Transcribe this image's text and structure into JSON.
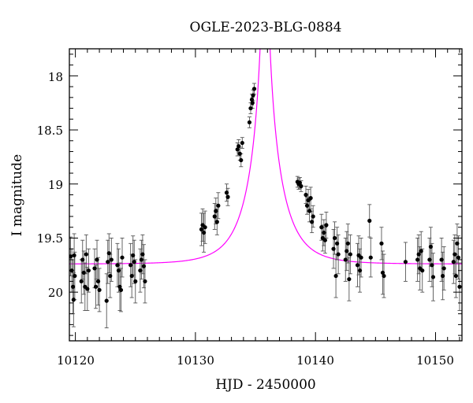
{
  "chart_data": {
    "type": "scatter",
    "title": "OGLE-2023-BLG-0884",
    "xlabel": "HJD - 2450000",
    "ylabel": "I magnitude",
    "xlim": [
      10119.5,
      10152.2
    ],
    "ylim": [
      20.45,
      17.75
    ],
    "y_inverted": true,
    "x_ticks": [
      10120,
      10130,
      10140,
      10150
    ],
    "x_tick_labels": [
      "10120",
      "10130",
      "10140",
      "10150"
    ],
    "y_ticks": [
      18,
      18.5,
      19,
      19.5,
      20
    ],
    "y_tick_labels": [
      "18",
      "18.5",
      "19",
      "19.5",
      "20"
    ],
    "grid": false,
    "legend": "none",
    "colors": {
      "model": "#ff00ff",
      "data": "#000000"
    },
    "series": [
      {
        "kind": "points-with-errorbars",
        "points": [
          [
            10119.6,
            19.67,
            0.18
          ],
          [
            10119.7,
            19.8,
            0.2
          ],
          [
            10119.8,
            19.95,
            0.25
          ],
          [
            10119.85,
            20.07,
            0.25
          ],
          [
            10119.9,
            19.66,
            0.2
          ],
          [
            10119.95,
            19.85,
            0.22
          ],
          [
            10120.5,
            19.9,
            0.2
          ],
          [
            10120.6,
            19.7,
            0.18
          ],
          [
            10120.7,
            19.82,
            0.2
          ],
          [
            10120.8,
            19.95,
            0.22
          ],
          [
            10120.9,
            19.65,
            0.18
          ],
          [
            10121.0,
            19.97,
            0.2
          ],
          [
            10121.1,
            19.8,
            0.2
          ],
          [
            10121.6,
            19.78,
            0.18
          ],
          [
            10121.7,
            19.95,
            0.2
          ],
          [
            10121.8,
            19.7,
            0.18
          ],
          [
            10121.9,
            19.9,
            0.22
          ],
          [
            10122.0,
            19.98,
            0.2
          ],
          [
            10122.6,
            20.08,
            0.25
          ],
          [
            10122.7,
            19.72,
            0.2
          ],
          [
            10122.8,
            19.64,
            0.18
          ],
          [
            10122.9,
            19.85,
            0.2
          ],
          [
            10123.0,
            19.7,
            0.2
          ],
          [
            10123.5,
            19.75,
            0.2
          ],
          [
            10123.6,
            19.8,
            0.2
          ],
          [
            10123.7,
            19.95,
            0.22
          ],
          [
            10123.8,
            19.98,
            0.2
          ],
          [
            10123.9,
            19.68,
            0.18
          ],
          [
            10124.6,
            19.75,
            0.2
          ],
          [
            10124.7,
            19.85,
            0.2
          ],
          [
            10124.8,
            19.66,
            0.18
          ],
          [
            10124.9,
            19.72,
            0.2
          ],
          [
            10125.0,
            19.9,
            0.2
          ],
          [
            10125.4,
            19.8,
            0.2
          ],
          [
            10125.5,
            19.7,
            0.18
          ],
          [
            10125.6,
            19.65,
            0.18
          ],
          [
            10125.7,
            19.76,
            0.2
          ],
          [
            10125.8,
            19.9,
            0.2
          ],
          [
            10130.5,
            19.42,
            0.15
          ],
          [
            10130.6,
            19.38,
            0.15
          ],
          [
            10130.7,
            19.45,
            0.18
          ],
          [
            10130.8,
            19.4,
            0.15
          ],
          [
            10131.6,
            19.3,
            0.12
          ],
          [
            10131.7,
            19.25,
            0.12
          ],
          [
            10131.8,
            19.35,
            0.12
          ],
          [
            10131.9,
            19.2,
            0.12
          ],
          [
            10132.6,
            19.08,
            0.08
          ],
          [
            10132.7,
            19.12,
            0.08
          ],
          [
            10133.5,
            18.68,
            0.06
          ],
          [
            10133.6,
            18.65,
            0.06
          ],
          [
            10133.7,
            18.72,
            0.06
          ],
          [
            10133.8,
            18.78,
            0.06
          ],
          [
            10133.9,
            18.62,
            0.05
          ],
          [
            10134.5,
            18.43,
            0.05
          ],
          [
            10134.6,
            18.3,
            0.05
          ],
          [
            10134.7,
            18.22,
            0.05
          ],
          [
            10134.8,
            18.18,
            0.05
          ],
          [
            10134.9,
            18.12,
            0.05
          ],
          [
            10134.75,
            18.25,
            0.05
          ],
          [
            10138.5,
            18.98,
            0.05
          ],
          [
            10138.6,
            19.0,
            0.05
          ],
          [
            10138.7,
            18.99,
            0.05
          ],
          [
            10138.8,
            19.02,
            0.05
          ],
          [
            10139.2,
            19.1,
            0.08
          ],
          [
            10139.3,
            19.2,
            0.08
          ],
          [
            10139.4,
            19.15,
            0.1
          ],
          [
            10139.5,
            19.25,
            0.1
          ],
          [
            10139.6,
            19.13,
            0.1
          ],
          [
            10139.7,
            19.35,
            0.1
          ],
          [
            10139.8,
            19.3,
            0.1
          ],
          [
            10140.5,
            19.4,
            0.12
          ],
          [
            10140.6,
            19.5,
            0.12
          ],
          [
            10140.7,
            19.45,
            0.12
          ],
          [
            10140.8,
            19.52,
            0.12
          ],
          [
            10140.9,
            19.38,
            0.12
          ],
          [
            10141.5,
            19.6,
            0.18
          ],
          [
            10141.6,
            19.5,
            0.15
          ],
          [
            10141.7,
            19.85,
            0.2
          ],
          [
            10141.8,
            19.55,
            0.15
          ],
          [
            10141.9,
            19.65,
            0.18
          ],
          [
            10142.5,
            19.7,
            0.2
          ],
          [
            10142.6,
            19.62,
            0.18
          ],
          [
            10142.7,
            19.55,
            0.18
          ],
          [
            10142.8,
            19.88,
            0.2
          ],
          [
            10142.9,
            19.65,
            0.18
          ],
          [
            10143.5,
            19.75,
            0.2
          ],
          [
            10143.6,
            19.66,
            0.18
          ],
          [
            10143.7,
            19.8,
            0.2
          ],
          [
            10143.8,
            19.68,
            0.18
          ],
          [
            10144.5,
            19.34,
            0.15
          ],
          [
            10144.6,
            19.68,
            0.18
          ],
          [
            10145.5,
            19.55,
            0.15
          ],
          [
            10145.6,
            19.82,
            0.2
          ],
          [
            10145.7,
            19.85,
            0.2
          ],
          [
            10147.5,
            19.72,
            0.18
          ],
          [
            10148.5,
            19.7,
            0.2
          ],
          [
            10148.6,
            19.65,
            0.18
          ],
          [
            10148.7,
            19.78,
            0.2
          ],
          [
            10148.8,
            19.62,
            0.18
          ],
          [
            10148.9,
            19.8,
            0.2
          ],
          [
            10149.5,
            19.7,
            0.2
          ],
          [
            10149.6,
            19.58,
            0.18
          ],
          [
            10149.7,
            19.75,
            0.2
          ],
          [
            10149.8,
            19.86,
            0.22
          ],
          [
            10150.5,
            19.7,
            0.2
          ],
          [
            10150.6,
            19.85,
            0.22
          ],
          [
            10150.7,
            19.78,
            0.2
          ],
          [
            10151.5,
            19.72,
            0.2
          ],
          [
            10151.6,
            19.65,
            0.18
          ],
          [
            10151.7,
            19.85,
            0.2
          ],
          [
            10151.8,
            19.55,
            0.18
          ],
          [
            10151.9,
            19.68,
            0.2
          ],
          [
            10152.0,
            19.95,
            0.22
          ]
        ]
      },
      {
        "kind": "model-curve",
        "t0": 10135.8,
        "tE": 2.6,
        "u0": 0.018,
        "baseline_mag": 19.74
      }
    ]
  }
}
